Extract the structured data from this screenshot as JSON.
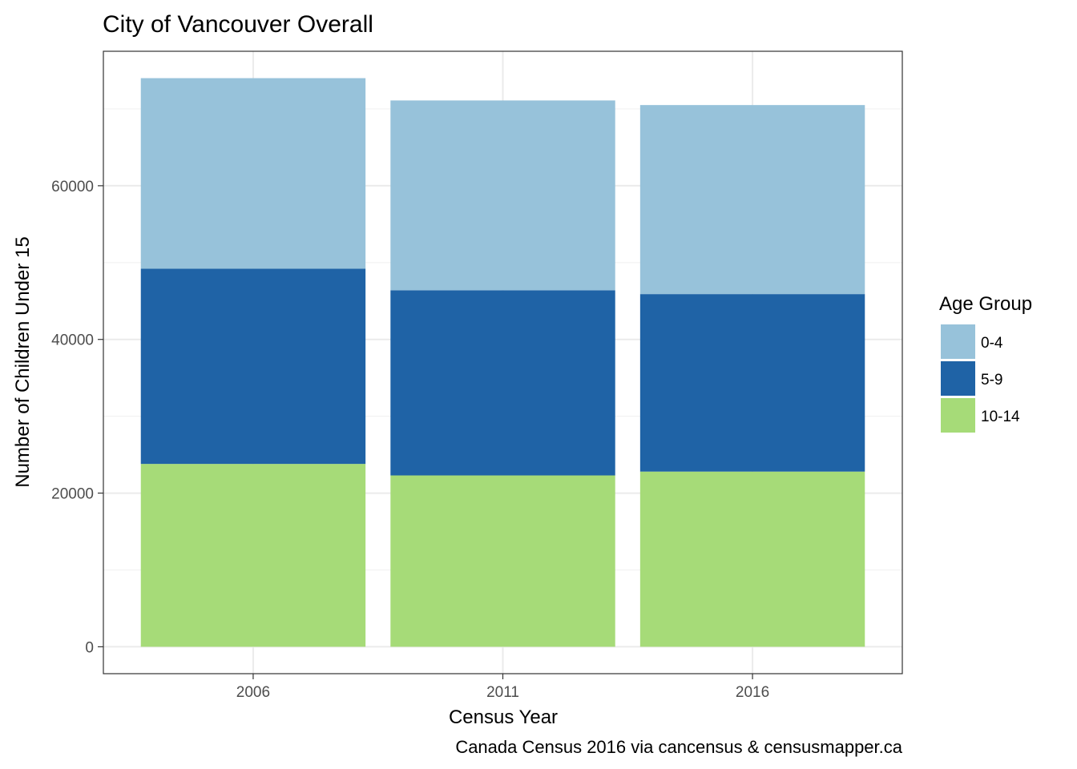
{
  "chart_data": {
    "type": "bar",
    "stacked": true,
    "title": "City of Vancouver Overall",
    "xlabel": "Census Year",
    "ylabel": "Number of Children Under 15",
    "caption": "Canada Census 2016 via cancensus & censusmapper.ca",
    "categories": [
      "2006",
      "2011",
      "2016"
    ],
    "series": [
      {
        "name": "10-14",
        "values": [
          23800,
          22300,
          22800
        ],
        "color": "#a6db78"
      },
      {
        "name": "5-9",
        "values": [
          25400,
          24100,
          23100
        ],
        "color": "#1f63a6"
      },
      {
        "name": "0-4",
        "values": [
          24800,
          24700,
          24600
        ],
        "color": "#97c2da"
      }
    ],
    "ylim": [
      -3500,
      77500
    ],
    "yticks": [
      0,
      20000,
      40000,
      60000
    ],
    "ytick_labels": [
      "0",
      "20000",
      "40000",
      "60000"
    ],
    "grid": true,
    "legend": {
      "title": "Age Group",
      "position": "right",
      "entries": [
        {
          "label": "0-4",
          "color": "#97c2da"
        },
        {
          "label": "5-9",
          "color": "#1f63a6"
        },
        {
          "label": "10-14",
          "color": "#a6db78"
        }
      ]
    }
  }
}
